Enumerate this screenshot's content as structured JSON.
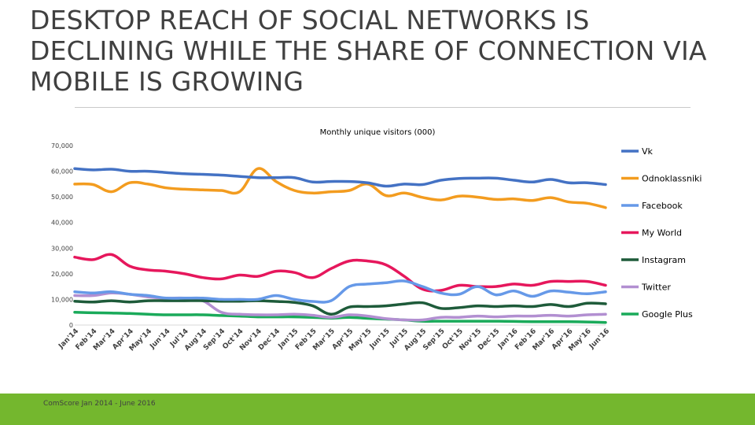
{
  "slide": {
    "title": "DESKTOP REACH OF SOCIAL NETWORKS IS DECLINING WHILE THE SHARE OF CONNECTION VIA MOBILE IS GROWING",
    "footer": "ComScore Jan 2014 - June 2016",
    "accent_color": "#74b72e"
  },
  "chart_data": {
    "type": "line",
    "title": "Monthly unique visitors (000)",
    "xlabel": "",
    "ylabel": "",
    "ylim": [
      0,
      70000
    ],
    "yticks": [
      "0",
      "10,000",
      "20,000",
      "30,000",
      "40,000",
      "50,000",
      "60,000",
      "70,000"
    ],
    "grid": false,
    "legend_position": "right",
    "categories": [
      "Jan'14",
      "Feb'14",
      "Mar'14",
      "Apr'14",
      "May'14",
      "Jun'14",
      "Jul'14",
      "Aug'14",
      "Sep'14",
      "Oct'14",
      "Nov'14",
      "Dec'14",
      "Jan'15",
      "Feb'15",
      "Mar'15",
      "Apr'15",
      "May'15",
      "Jun'15",
      "Jul'15",
      "Aug'15",
      "Sep'15",
      "Oct'15",
      "Nov'15",
      "Dec'15",
      "Jan'16",
      "Feb'16",
      "Mar'16",
      "Apr'16",
      "May'16",
      "Jun'16"
    ],
    "series": [
      {
        "name": "Vk",
        "color": "#4472c4",
        "values": [
          61000,
          60500,
          60800,
          60000,
          60000,
          59500,
          59000,
          58800,
          58500,
          58000,
          57500,
          57500,
          57500,
          55800,
          56000,
          56000,
          55500,
          54200,
          55000,
          54800,
          56500,
          57200,
          57300,
          57300,
          56500,
          55800,
          56800,
          55500,
          55500,
          54800
        ]
      },
      {
        "name": "Odnoklassniki",
        "color": "#f39c1f",
        "values": [
          55000,
          54800,
          52000,
          55500,
          55000,
          53500,
          53000,
          52700,
          52500,
          52000,
          61000,
          56000,
          52500,
          51500,
          52000,
          52500,
          55000,
          50500,
          51500,
          49800,
          48800,
          50300,
          49900,
          49000,
          49200,
          48600,
          49700,
          48000,
          47500,
          45800
        ]
      },
      {
        "name": "Facebook",
        "color": "#6699e8",
        "values": [
          13000,
          12500,
          13000,
          12000,
          11500,
          10500,
          10500,
          10500,
          10000,
          10000,
          10000,
          11500,
          10000,
          9200,
          9500,
          15000,
          16000,
          16500,
          17200,
          15000,
          12500,
          12000,
          15000,
          11800,
          13300,
          11200,
          13300,
          12800,
          12200,
          13000
        ]
      },
      {
        "name": "My World",
        "color": "#e6175c",
        "values": [
          26500,
          25500,
          27500,
          23000,
          21500,
          21000,
          20000,
          18500,
          18000,
          19500,
          19000,
          21000,
          20500,
          18500,
          22000,
          25000,
          25000,
          23500,
          19000,
          14000,
          13500,
          15500,
          15000,
          15000,
          16000,
          15500,
          17000,
          17000,
          17000,
          15500
        ]
      },
      {
        "name": "Instagram",
        "color": "#1e5b3a",
        "values": [
          9300,
          9000,
          9500,
          9000,
          9500,
          9500,
          9500,
          9500,
          9300,
          9300,
          9500,
          9200,
          8800,
          7500,
          4200,
          7000,
          7200,
          7500,
          8200,
          8700,
          6500,
          6800,
          7500,
          7200,
          7500,
          7200,
          8000,
          7200,
          8500,
          8300
        ]
      },
      {
        "name": "Twitter",
        "color": "#b28fd1",
        "values": [
          11500,
          11500,
          12500,
          12000,
          11000,
          10500,
          10500,
          9500,
          5000,
          4200,
          4000,
          4000,
          4200,
          3800,
          3000,
          4000,
          3500,
          2500,
          2000,
          2000,
          3000,
          3000,
          3500,
          3200,
          3500,
          3500,
          3800,
          3500,
          4000,
          4200
        ]
      },
      {
        "name": "Google Plus",
        "color": "#1aaa5a",
        "values": [
          5000,
          4800,
          4700,
          4500,
          4200,
          4000,
          4000,
          4000,
          3700,
          3500,
          3200,
          3200,
          3200,
          3000,
          2700,
          3000,
          2600,
          2300,
          2000,
          1500,
          1500,
          1500,
          1500,
          1500,
          1400,
          1300,
          1300,
          1300,
          1200,
          1000
        ]
      }
    ]
  }
}
